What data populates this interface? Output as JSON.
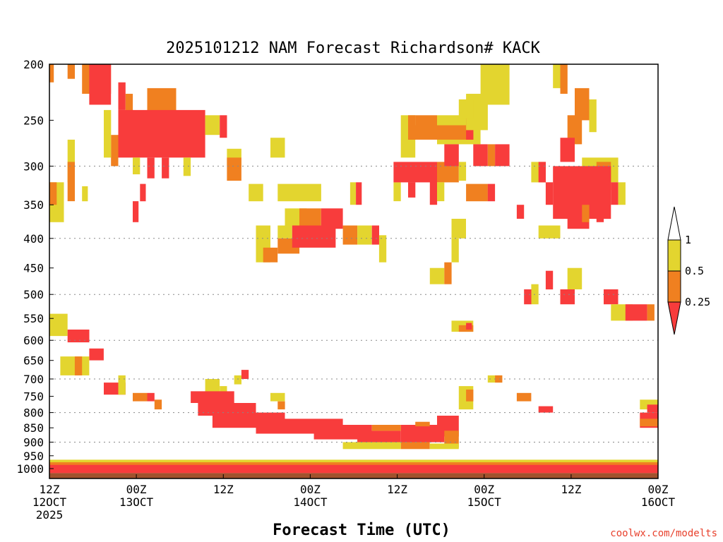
{
  "chart_data": {
    "type": "heatmap",
    "title": "2025101212 NAM Forecast Richardson# KACK",
    "xlabel": "Forecast Time (UTC)",
    "ylabel": "",
    "credit": "coolwx.com/modelts",
    "y_scale": "log",
    "y_direction": "pressure (hPa), decreasing upward",
    "ylim": [
      1040,
      200
    ],
    "xlim_hours": [
      0,
      84
    ],
    "y_ticks": [
      200,
      250,
      300,
      350,
      400,
      450,
      500,
      550,
      600,
      650,
      700,
      750,
      800,
      850,
      900,
      950,
      1000
    ],
    "dotted_grid_levels": [
      300,
      400,
      500,
      600,
      700,
      800,
      900
    ],
    "x_ticks": [
      {
        "hour": 0,
        "line1": "12Z",
        "line2": "12OCT",
        "line3": "2025"
      },
      {
        "hour": 12,
        "line1": "00Z",
        "line2": "13OCT",
        "line3": ""
      },
      {
        "hour": 24,
        "line1": "12Z",
        "line2": "",
        "line3": ""
      },
      {
        "hour": 36,
        "line1": "00Z",
        "line2": "14OCT",
        "line3": ""
      },
      {
        "hour": 48,
        "line1": "12Z",
        "line2": "",
        "line3": ""
      },
      {
        "hour": 60,
        "line1": "00Z",
        "line2": "15OCT",
        "line3": ""
      },
      {
        "hour": 72,
        "line1": "12Z",
        "line2": "",
        "line3": ""
      },
      {
        "hour": 84,
        "line1": "00Z",
        "line2": "16OCT",
        "line3": ""
      }
    ],
    "legend": {
      "placement": "right",
      "boundaries": [
        "1",
        "0.5",
        "0.25"
      ],
      "bins": [
        {
          "range": "> 1",
          "color": "#ffffff"
        },
        {
          "range": "0.5 - 1",
          "color": "#e3d52f"
        },
        {
          "range": "0.25 - 0.5",
          "color": "#f08020"
        },
        {
          "range": "< 0.25",
          "color": "#f83c3c"
        }
      ]
    },
    "colors": {
      "red": "#f83c3c",
      "orange": "#f08020",
      "yellow": "#e3d52f",
      "ground": "#a0522d"
    },
    "regions": [
      {
        "h0": 0.0,
        "h1": 0.6,
        "p0": 200,
        "p1": 215,
        "bin": "orange"
      },
      {
        "h0": 2.5,
        "h1": 3.5,
        "p0": 200,
        "p1": 212,
        "bin": "orange"
      },
      {
        "h0": 4.5,
        "h1": 8.5,
        "p0": 200,
        "p1": 225,
        "bin": "orange"
      },
      {
        "h0": 5.5,
        "h1": 8.5,
        "p0": 200,
        "p1": 235,
        "bin": "red"
      },
      {
        "h0": 9.5,
        "h1": 10.5,
        "p0": 215,
        "p1": 240,
        "bin": "red"
      },
      {
        "h0": 10.5,
        "h1": 11.5,
        "p0": 225,
        "p1": 260,
        "bin": "orange"
      },
      {
        "h0": 13.5,
        "h1": 17.5,
        "p0": 220,
        "p1": 245,
        "bin": "orange"
      },
      {
        "h0": 9.5,
        "h1": 21.5,
        "p0": 240,
        "p1": 290,
        "bin": "red"
      },
      {
        "h0": 8.5,
        "h1": 9.5,
        "p0": 265,
        "p1": 300,
        "bin": "orange"
      },
      {
        "h0": 21.5,
        "h1": 23.5,
        "p0": 245,
        "p1": 265,
        "bin": "yellow"
      },
      {
        "h0": 23.5,
        "h1": 24.5,
        "p0": 245,
        "p1": 268,
        "bin": "red"
      },
      {
        "h0": 7.5,
        "h1": 8.5,
        "p0": 240,
        "p1": 290,
        "bin": "yellow"
      },
      {
        "h0": 11.5,
        "h1": 12.5,
        "p0": 290,
        "p1": 310,
        "bin": "yellow"
      },
      {
        "h0": 13.5,
        "h1": 14.5,
        "p0": 290,
        "p1": 315,
        "bin": "red"
      },
      {
        "h0": 15.5,
        "h1": 16.5,
        "p0": 290,
        "p1": 315,
        "bin": "red"
      },
      {
        "h0": 18.5,
        "h1": 19.5,
        "p0": 290,
        "p1": 312,
        "bin": "yellow"
      },
      {
        "h0": 2.5,
        "h1": 3.5,
        "p0": 270,
        "p1": 320,
        "bin": "yellow"
      },
      {
        "h0": 2.5,
        "h1": 3.5,
        "p0": 295,
        "p1": 345,
        "bin": "orange"
      },
      {
        "h0": 0.0,
        "h1": 2.0,
        "p0": 320,
        "p1": 375,
        "bin": "yellow"
      },
      {
        "h0": 0.0,
        "h1": 1.0,
        "p0": 320,
        "p1": 350,
        "bin": "orange"
      },
      {
        "h0": 4.5,
        "h1": 5.3,
        "p0": 325,
        "p1": 345,
        "bin": "yellow"
      },
      {
        "h0": 12.5,
        "h1": 13.3,
        "p0": 322,
        "p1": 345,
        "bin": "red"
      },
      {
        "h0": 11.5,
        "h1": 12.3,
        "p0": 345,
        "p1": 375,
        "bin": "red"
      },
      {
        "h0": 24.5,
        "h1": 26.5,
        "p0": 280,
        "p1": 300,
        "bin": "yellow"
      },
      {
        "h0": 24.5,
        "h1": 26.5,
        "p0": 290,
        "p1": 318,
        "bin": "orange"
      },
      {
        "h0": 27.5,
        "h1": 29.5,
        "p0": 322,
        "p1": 345,
        "bin": "yellow"
      },
      {
        "h0": 30.5,
        "h1": 32.5,
        "p0": 268,
        "p1": 290,
        "bin": "yellow"
      },
      {
        "h0": 31.5,
        "h1": 37.5,
        "p0": 322,
        "p1": 345,
        "bin": "yellow"
      },
      {
        "h0": 32.5,
        "h1": 35.5,
        "p0": 355,
        "p1": 380,
        "bin": "yellow"
      },
      {
        "h0": 34.5,
        "h1": 37.5,
        "p0": 355,
        "p1": 385,
        "bin": "orange"
      },
      {
        "h0": 37.5,
        "h1": 40.5,
        "p0": 355,
        "p1": 385,
        "bin": "red"
      },
      {
        "h0": 28.5,
        "h1": 30.5,
        "p0": 380,
        "p1": 440,
        "bin": "yellow"
      },
      {
        "h0": 29.5,
        "h1": 31.5,
        "p0": 415,
        "p1": 440,
        "bin": "orange"
      },
      {
        "h0": 31.5,
        "h1": 33.5,
        "p0": 380,
        "p1": 400,
        "bin": "yellow"
      },
      {
        "h0": 31.5,
        "h1": 34.5,
        "p0": 400,
        "p1": 425,
        "bin": "orange"
      },
      {
        "h0": 33.5,
        "h1": 39.5,
        "p0": 380,
        "p1": 415,
        "bin": "red"
      },
      {
        "h0": 40.5,
        "h1": 42.5,
        "p0": 380,
        "p1": 410,
        "bin": "orange"
      },
      {
        "h0": 42.5,
        "h1": 44.5,
        "p0": 380,
        "p1": 410,
        "bin": "yellow"
      },
      {
        "h0": 44.5,
        "h1": 45.5,
        "p0": 380,
        "p1": 410,
        "bin": "red"
      },
      {
        "h0": 45.5,
        "h1": 46.5,
        "p0": 395,
        "p1": 440,
        "bin": "yellow"
      },
      {
        "h0": 41.5,
        "h1": 42.3,
        "p0": 320,
        "p1": 350,
        "bin": "yellow"
      },
      {
        "h0": 42.3,
        "h1": 43.1,
        "p0": 320,
        "p1": 350,
        "bin": "red"
      },
      {
        "h0": 47.5,
        "h1": 48.5,
        "p0": 320,
        "p1": 345,
        "bin": "yellow"
      },
      {
        "h0": 48.5,
        "h1": 50.5,
        "p0": 245,
        "p1": 290,
        "bin": "yellow"
      },
      {
        "h0": 49.5,
        "h1": 50.5,
        "p0": 245,
        "p1": 270,
        "bin": "orange"
      },
      {
        "h0": 50.5,
        "h1": 53.5,
        "p0": 245,
        "p1": 268,
        "bin": "orange"
      },
      {
        "h0": 53.5,
        "h1": 59.5,
        "p0": 245,
        "p1": 275,
        "bin": "yellow"
      },
      {
        "h0": 49.5,
        "h1": 58.5,
        "p0": 255,
        "p1": 270,
        "bin": "orange"
      },
      {
        "h0": 57.5,
        "h1": 58.5,
        "p0": 245,
        "p1": 270,
        "bin": "red"
      },
      {
        "h0": 47.5,
        "h1": 53.5,
        "p0": 295,
        "p1": 320,
        "bin": "red"
      },
      {
        "h0": 49.5,
        "h1": 50.5,
        "p0": 320,
        "p1": 340,
        "bin": "red"
      },
      {
        "h0": 52.5,
        "h1": 53.5,
        "p0": 310,
        "p1": 350,
        "bin": "red"
      },
      {
        "h0": 53.5,
        "h1": 56.5,
        "p0": 295,
        "p1": 320,
        "bin": "orange"
      },
      {
        "h0": 54.5,
        "h1": 56.5,
        "p0": 275,
        "p1": 300,
        "bin": "red"
      },
      {
        "h0": 58.5,
        "h1": 60.5,
        "p0": 275,
        "p1": 300,
        "bin": "red"
      },
      {
        "h0": 60.5,
        "h1": 61.5,
        "p0": 275,
        "p1": 300,
        "bin": "orange"
      },
      {
        "h0": 61.5,
        "h1": 63.5,
        "p0": 275,
        "p1": 300,
        "bin": "red"
      },
      {
        "h0": 56.5,
        "h1": 57.5,
        "p0": 295,
        "p1": 318,
        "bin": "yellow"
      },
      {
        "h0": 57.5,
        "h1": 60.5,
        "p0": 225,
        "p1": 260,
        "bin": "yellow"
      },
      {
        "h0": 59.5,
        "h1": 63.5,
        "p0": 200,
        "p1": 235,
        "bin": "yellow"
      },
      {
        "h0": 56.5,
        "h1": 58.5,
        "p0": 230,
        "p1": 248,
        "bin": "yellow"
      },
      {
        "h0": 57.5,
        "h1": 60.5,
        "p0": 322,
        "p1": 345,
        "bin": "orange"
      },
      {
        "h0": 60.5,
        "h1": 61.5,
        "p0": 322,
        "p1": 345,
        "bin": "red"
      },
      {
        "h0": 53.5,
        "h1": 54.5,
        "p0": 320,
        "p1": 345,
        "bin": "yellow"
      },
      {
        "h0": 55.5,
        "h1": 57.5,
        "p0": 370,
        "p1": 400,
        "bin": "yellow"
      },
      {
        "h0": 52.5,
        "h1": 54.5,
        "p0": 450,
        "p1": 480,
        "bin": "yellow"
      },
      {
        "h0": 54.5,
        "h1": 55.5,
        "p0": 440,
        "p1": 480,
        "bin": "orange"
      },
      {
        "h0": 55.5,
        "h1": 56.5,
        "p0": 400,
        "p1": 440,
        "bin": "yellow"
      },
      {
        "h0": 55.5,
        "h1": 58.5,
        "p0": 555,
        "p1": 580,
        "bin": "yellow"
      },
      {
        "h0": 56.5,
        "h1": 58.5,
        "p0": 565,
        "p1": 580,
        "bin": "orange"
      },
      {
        "h0": 57.5,
        "h1": 58.3,
        "p0": 560,
        "p1": 575,
        "bin": "red"
      },
      {
        "h0": 69.5,
        "h1": 70.5,
        "p0": 200,
        "p1": 220,
        "bin": "yellow"
      },
      {
        "h0": 70.5,
        "h1": 71.5,
        "p0": 200,
        "p1": 225,
        "bin": "orange"
      },
      {
        "h0": 72.5,
        "h1": 74.5,
        "p0": 220,
        "p1": 250,
        "bin": "orange"
      },
      {
        "h0": 74.5,
        "h1": 75.5,
        "p0": 230,
        "p1": 262,
        "bin": "yellow"
      },
      {
        "h0": 71.5,
        "h1": 73.5,
        "p0": 245,
        "p1": 275,
        "bin": "orange"
      },
      {
        "h0": 70.5,
        "h1": 72.5,
        "p0": 268,
        "p1": 295,
        "bin": "red"
      },
      {
        "h0": 73.5,
        "h1": 78.5,
        "p0": 290,
        "p1": 320,
        "bin": "yellow"
      },
      {
        "h0": 75.5,
        "h1": 77.5,
        "p0": 295,
        "p1": 330,
        "bin": "orange"
      },
      {
        "h0": 69.5,
        "h1": 77.5,
        "p0": 300,
        "p1": 370,
        "bin": "red"
      },
      {
        "h0": 71.5,
        "h1": 74.5,
        "p0": 360,
        "p1": 385,
        "bin": "red"
      },
      {
        "h0": 73.5,
        "h1": 74.5,
        "p0": 350,
        "p1": 375,
        "bin": "orange"
      },
      {
        "h0": 75.5,
        "h1": 76.5,
        "p0": 350,
        "p1": 375,
        "bin": "red"
      },
      {
        "h0": 66.5,
        "h1": 68.5,
        "p0": 295,
        "p1": 320,
        "bin": "yellow"
      },
      {
        "h0": 67.5,
        "h1": 68.5,
        "p0": 295,
        "p1": 320,
        "bin": "red"
      },
      {
        "h0": 68.5,
        "h1": 69.5,
        "p0": 320,
        "p1": 350,
        "bin": "red"
      },
      {
        "h0": 77.5,
        "h1": 78.5,
        "p0": 320,
        "p1": 350,
        "bin": "red"
      },
      {
        "h0": 78.5,
        "h1": 79.5,
        "p0": 320,
        "p1": 350,
        "bin": "yellow"
      },
      {
        "h0": 67.5,
        "h1": 70.5,
        "p0": 380,
        "p1": 400,
        "bin": "yellow"
      },
      {
        "h0": 64.5,
        "h1": 65.5,
        "p0": 350,
        "p1": 370,
        "bin": "red"
      },
      {
        "h0": 68.5,
        "h1": 69.5,
        "p0": 455,
        "p1": 490,
        "bin": "red"
      },
      {
        "h0": 66.5,
        "h1": 67.5,
        "p0": 480,
        "p1": 520,
        "bin": "yellow"
      },
      {
        "h0": 65.5,
        "h1": 66.5,
        "p0": 490,
        "p1": 520,
        "bin": "red"
      },
      {
        "h0": 70.5,
        "h1": 72.5,
        "p0": 490,
        "p1": 520,
        "bin": "red"
      },
      {
        "h0": 71.5,
        "h1": 73.5,
        "p0": 450,
        "p1": 490,
        "bin": "yellow"
      },
      {
        "h0": 76.5,
        "h1": 78.5,
        "p0": 490,
        "p1": 520,
        "bin": "red"
      },
      {
        "h0": 77.5,
        "h1": 80.5,
        "p0": 520,
        "p1": 555,
        "bin": "yellow"
      },
      {
        "h0": 79.5,
        "h1": 82.5,
        "p0": 520,
        "p1": 555,
        "bin": "red"
      },
      {
        "h0": 82.5,
        "h1": 83.5,
        "p0": 520,
        "p1": 555,
        "bin": "orange"
      },
      {
        "h0": 0.0,
        "h1": 2.5,
        "p0": 540,
        "p1": 590,
        "bin": "yellow"
      },
      {
        "h0": 2.5,
        "h1": 5.5,
        "p0": 575,
        "p1": 605,
        "bin": "red"
      },
      {
        "h0": 5.5,
        "h1": 7.5,
        "p0": 620,
        "p1": 650,
        "bin": "red"
      },
      {
        "h0": 1.5,
        "h1": 5.5,
        "p0": 640,
        "p1": 690,
        "bin": "yellow"
      },
      {
        "h0": 3.5,
        "h1": 4.5,
        "p0": 640,
        "p1": 690,
        "bin": "orange"
      },
      {
        "h0": 7.5,
        "h1": 10.5,
        "p0": 710,
        "p1": 745,
        "bin": "red"
      },
      {
        "h0": 9.5,
        "h1": 10.5,
        "p0": 690,
        "p1": 745,
        "bin": "yellow"
      },
      {
        "h0": 11.5,
        "h1": 13.5,
        "p0": 740,
        "p1": 765,
        "bin": "orange"
      },
      {
        "h0": 13.5,
        "h1": 14.5,
        "p0": 740,
        "p1": 765,
        "bin": "red"
      },
      {
        "h0": 14.5,
        "h1": 15.5,
        "p0": 760,
        "p1": 790,
        "bin": "orange"
      },
      {
        "h0": 26.5,
        "h1": 27.5,
        "p0": 675,
        "p1": 700,
        "bin": "red"
      },
      {
        "h0": 25.5,
        "h1": 26.5,
        "p0": 690,
        "p1": 715,
        "bin": "yellow"
      },
      {
        "h0": 21.5,
        "h1": 23.5,
        "p0": 700,
        "p1": 740,
        "bin": "yellow"
      },
      {
        "h0": 23.5,
        "h1": 24.5,
        "p0": 720,
        "p1": 780,
        "bin": "yellow"
      },
      {
        "h0": 30.5,
        "h1": 32.5,
        "p0": 740,
        "p1": 765,
        "bin": "yellow"
      },
      {
        "h0": 31.5,
        "h1": 32.5,
        "p0": 765,
        "p1": 790,
        "bin": "orange"
      },
      {
        "h0": 56.5,
        "h1": 58.5,
        "p0": 720,
        "p1": 790,
        "bin": "yellow"
      },
      {
        "h0": 57.5,
        "h1": 58.5,
        "p0": 730,
        "p1": 765,
        "bin": "orange"
      },
      {
        "h0": 60.5,
        "h1": 62.5,
        "p0": 690,
        "p1": 710,
        "bin": "yellow"
      },
      {
        "h0": 61.5,
        "h1": 62.5,
        "p0": 690,
        "p1": 710,
        "bin": "orange"
      },
      {
        "h0": 64.5,
        "h1": 66.5,
        "p0": 740,
        "p1": 765,
        "bin": "orange"
      },
      {
        "h0": 67.5,
        "h1": 69.5,
        "p0": 780,
        "p1": 800,
        "bin": "red"
      },
      {
        "h0": 81.5,
        "h1": 84.0,
        "p0": 760,
        "p1": 790,
        "bin": "yellow"
      },
      {
        "h0": 82.5,
        "h1": 84.0,
        "p0": 775,
        "p1": 800,
        "bin": "red"
      },
      {
        "h0": 81.5,
        "h1": 84.0,
        "p0": 800,
        "p1": 850,
        "bin": "red"
      },
      {
        "h0": 81.5,
        "h1": 84.0,
        "p0": 820,
        "p1": 845,
        "bin": "orange"
      },
      {
        "h0": 19.5,
        "h1": 25.5,
        "p0": 735,
        "p1": 770,
        "bin": "red"
      },
      {
        "h0": 20.5,
        "h1": 28.5,
        "p0": 770,
        "p1": 810,
        "bin": "red"
      },
      {
        "h0": 22.5,
        "h1": 32.5,
        "p0": 800,
        "p1": 850,
        "bin": "red"
      },
      {
        "h0": 28.5,
        "h1": 40.5,
        "p0": 820,
        "p1": 870,
        "bin": "red"
      },
      {
        "h0": 36.5,
        "h1": 44.5,
        "p0": 840,
        "p1": 890,
        "bin": "red"
      },
      {
        "h0": 42.5,
        "h1": 48.5,
        "p0": 860,
        "p1": 905,
        "bin": "red"
      },
      {
        "h0": 48.5,
        "h1": 54.5,
        "p0": 840,
        "p1": 900,
        "bin": "red"
      },
      {
        "h0": 53.5,
        "h1": 56.5,
        "p0": 810,
        "p1": 880,
        "bin": "red"
      },
      {
        "h0": 54.5,
        "h1": 56.5,
        "p0": 860,
        "p1": 920,
        "bin": "orange"
      },
      {
        "h0": 48.5,
        "h1": 52.5,
        "p0": 900,
        "p1": 925,
        "bin": "orange"
      },
      {
        "h0": 40.5,
        "h1": 48.5,
        "p0": 900,
        "p1": 925,
        "bin": "yellow"
      },
      {
        "h0": 44.5,
        "h1": 48.5,
        "p0": 840,
        "p1": 860,
        "bin": "orange"
      },
      {
        "h0": 50.5,
        "h1": 52.5,
        "p0": 830,
        "p1": 845,
        "bin": "orange"
      },
      {
        "h0": 52.5,
        "h1": 56.5,
        "p0": 905,
        "p1": 925,
        "bin": "yellow"
      },
      {
        "h0": 0.0,
        "h1": 84.0,
        "p0": 965,
        "p1": 990,
        "bin": "yellow"
      },
      {
        "h0": 0.0,
        "h1": 84.0,
        "p0": 975,
        "p1": 1000,
        "bin": "orange"
      },
      {
        "h0": 0.0,
        "h1": 84.0,
        "p0": 985,
        "p1": 1018,
        "bin": "red"
      }
    ]
  }
}
